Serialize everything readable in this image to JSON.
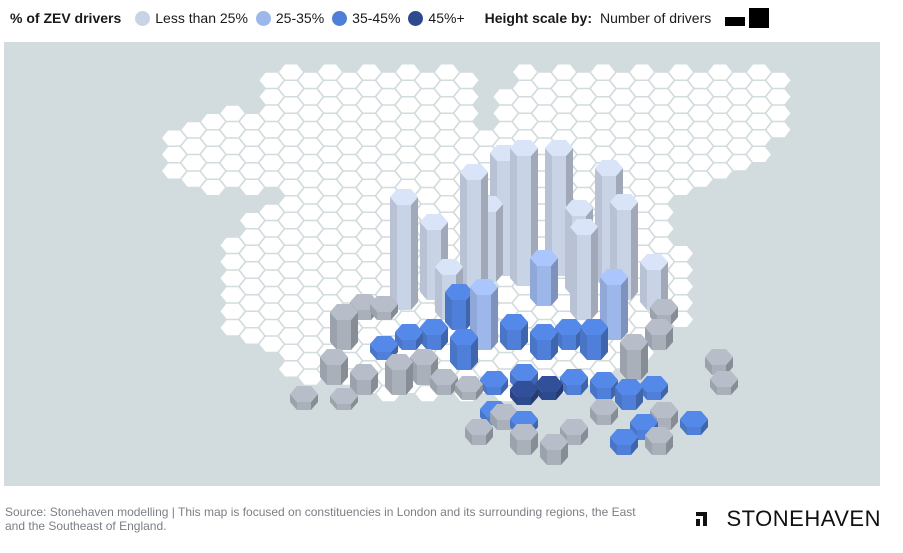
{
  "legend": {
    "title": "% of ZEV drivers",
    "items": [
      {
        "label": "Less than 25%",
        "color": "#c9d3e6"
      },
      {
        "label": "25-35%",
        "color": "#9db7ea"
      },
      {
        "label": "35-45%",
        "color": "#4f7fd8"
      },
      {
        "label": "45%+",
        "color": "#2e4a8f"
      }
    ],
    "height_title": "Height scale by:",
    "height_label": "Number of drivers"
  },
  "map": {
    "background_color": "#d2dbdd",
    "land_color": "#ffffff"
  },
  "footer": {
    "source": "Source: Stonehaven modelling | This map is focused on constituencies in London and its surrounding regions, the East and the Southeast of England.",
    "brand": "STONEHAVEN"
  }
}
